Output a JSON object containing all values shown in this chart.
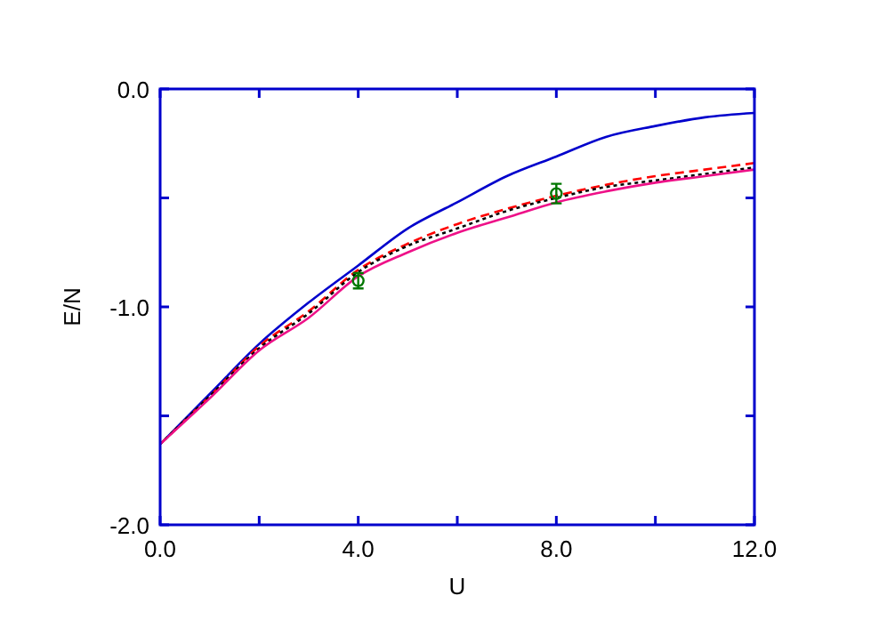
{
  "chart_data": {
    "type": "line",
    "xlabel": "U",
    "ylabel": "E/N",
    "x": [
      0,
      1,
      2,
      3,
      4,
      5,
      6,
      7,
      8,
      9,
      10,
      11,
      12
    ],
    "xlim": [
      0,
      12
    ],
    "ylim": [
      -2,
      0
    ],
    "xticks": [
      {
        "value": 0,
        "label": "0.0"
      },
      {
        "value": 2,
        "label": null
      },
      {
        "value": 4,
        "label": "4.0"
      },
      {
        "value": 6,
        "label": null
      },
      {
        "value": 8,
        "label": "8.0"
      },
      {
        "value": 10,
        "label": null
      },
      {
        "value": 12,
        "label": "12.0"
      }
    ],
    "yticks": [
      {
        "value": -2,
        "label": "-2.0"
      },
      {
        "value": -1.5,
        "label": null
      },
      {
        "value": -1,
        "label": "-1.0"
      },
      {
        "value": -0.5,
        "label": null
      },
      {
        "value": 0,
        "label": "0.0"
      }
    ],
    "grid": false,
    "series": [
      {
        "color": "#0000cc",
        "line_style": "solid",
        "values": [
          -1.63,
          -1.4,
          -1.17,
          -0.98,
          -0.81,
          -0.64,
          -0.52,
          -0.4,
          -0.31,
          -0.22,
          -0.17,
          -0.13,
          -0.11
        ]
      },
      {
        "color": "#ff0000",
        "line_style": "dashed",
        "values": [
          -1.63,
          -1.41,
          -1.18,
          -1.02,
          -0.83,
          -0.71,
          -0.62,
          -0.55,
          -0.49,
          -0.44,
          -0.4,
          -0.37,
          -0.34
        ]
      },
      {
        "color": "#000000",
        "line_style": "dotted",
        "values": [
          -1.63,
          -1.41,
          -1.19,
          -1.03,
          -0.84,
          -0.72,
          -0.64,
          -0.56,
          -0.5,
          -0.45,
          -0.42,
          -0.39,
          -0.36
        ]
      },
      {
        "color": "#ee1188",
        "line_style": "solid",
        "values": [
          -1.63,
          -1.42,
          -1.2,
          -1.05,
          -0.86,
          -0.75,
          -0.66,
          -0.59,
          -0.52,
          -0.47,
          -0.43,
          -0.4,
          -0.37
        ]
      },
      {
        "type": "scatter",
        "color": "#007700",
        "marker": "circle",
        "x": [
          4,
          8
        ],
        "values": [
          -0.88,
          -0.48
        ],
        "errors": [
          0.035,
          0.045
        ]
      }
    ]
  }
}
